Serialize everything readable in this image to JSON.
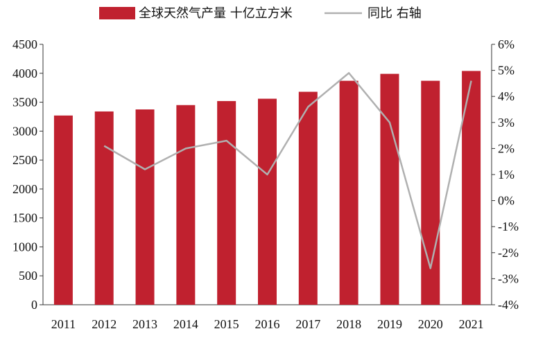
{
  "chart_data": {
    "type": "bar+line",
    "title": "",
    "categories": [
      "2011",
      "2012",
      "2013",
      "2014",
      "2015",
      "2016",
      "2017",
      "2018",
      "2019",
      "2020",
      "2021"
    ],
    "series": [
      {
        "name": "全球天然气产量 十亿立方米",
        "type": "bar",
        "axis": "left",
        "color": "#c0212f",
        "values": [
          3270,
          3340,
          3375,
          3450,
          3520,
          3560,
          3680,
          3870,
          3990,
          3870,
          4040
        ]
      },
      {
        "name": "同比 右轴",
        "type": "line",
        "axis": "right",
        "color": "#b0b0b0",
        "values": [
          null,
          2.1,
          1.2,
          2.0,
          2.3,
          1.0,
          3.6,
          4.9,
          3.0,
          -2.6,
          4.6
        ]
      }
    ],
    "y_left": {
      "min": 0,
      "max": 4500,
      "ticks": [
        "0",
        "500",
        "1000",
        "1500",
        "2000",
        "2500",
        "3000",
        "3500",
        "4000",
        "4500"
      ]
    },
    "y_right": {
      "min": -4,
      "max": 6,
      "ticks": [
        "-4%",
        "-3%",
        "-2%",
        "-1%",
        "0%",
        "1%",
        "2%",
        "3%",
        "4%",
        "5%",
        "6%"
      ]
    },
    "legend_position": "top-center",
    "grid": false
  }
}
